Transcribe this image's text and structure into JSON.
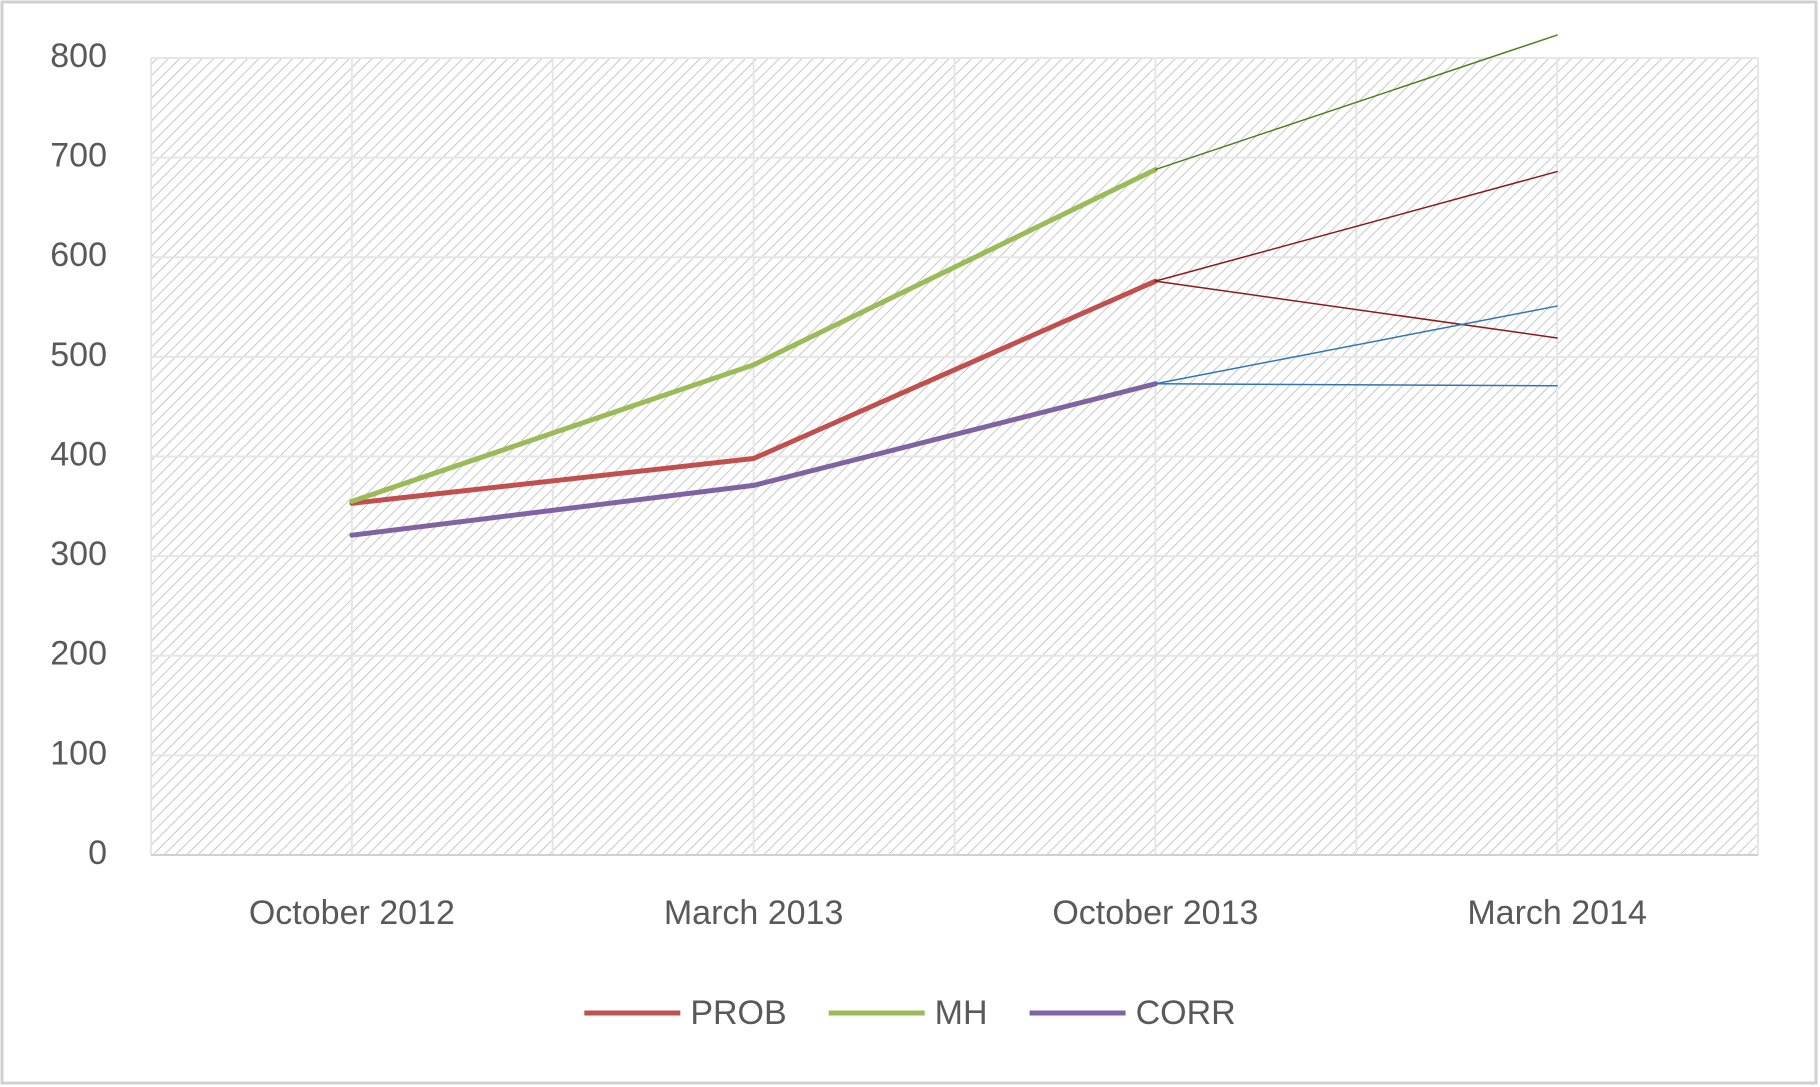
{
  "chart_data": {
    "type": "line",
    "categories": [
      "October 2012",
      "March 2013",
      "October 2013",
      "March 2014"
    ],
    "series": [
      {
        "name": "PROB",
        "color": "#c0504d",
        "width": 5,
        "values": [
          353,
          398,
          576,
          null
        ]
      },
      {
        "name": "MH",
        "color": "#9bbb59",
        "width": 5,
        "values": [
          355,
          492,
          688,
          null
        ]
      },
      {
        "name": "CORR",
        "color": "#8064a2",
        "width": 5,
        "values": [
          321,
          371,
          473,
          null
        ]
      },
      {
        "color": "#4f7f1f",
        "width": 1.5,
        "values": [
          null,
          null,
          688,
          823
        ]
      },
      {
        "color": "#8b1a1a",
        "width": 1.5,
        "values": [
          null,
          null,
          576,
          686
        ]
      },
      {
        "color": "#8b1a1a",
        "width": 1.5,
        "values": [
          null,
          null,
          576,
          519
        ]
      },
      {
        "color": "#2e75b6",
        "width": 1.5,
        "values": [
          null,
          null,
          473,
          551
        ]
      },
      {
        "color": "#2e75b6",
        "width": 1.5,
        "values": [
          null,
          null,
          473,
          471
        ]
      }
    ],
    "ylim": [
      0,
      800
    ],
    "yticks": [
      0,
      100,
      200,
      300,
      400,
      500,
      600,
      700,
      800
    ],
    "grid": true,
    "legend": "bottom"
  }
}
